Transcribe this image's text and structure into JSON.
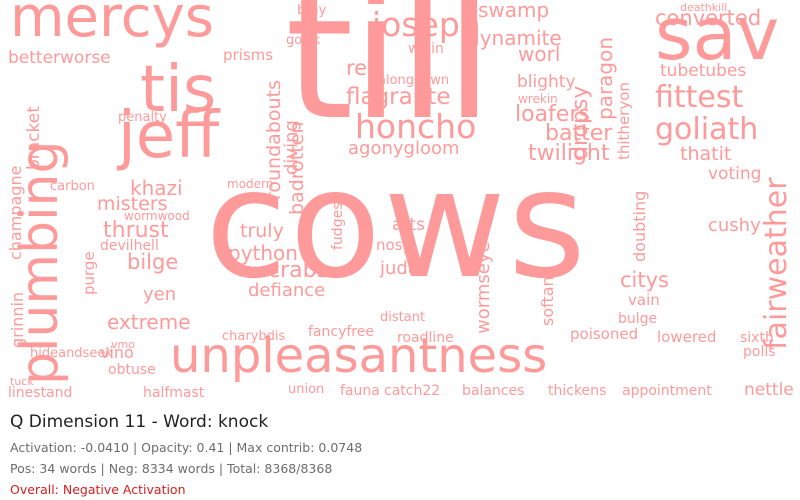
{
  "colors": {
    "word": "#ff9a9a",
    "title": "#222222",
    "meta": "#6d6d6d",
    "overall": "#d42020"
  },
  "title": "Q Dimension 11 - Word: knock",
  "stats": {
    "line1": "Activation: -0.0410 | Opacity: 0.41 | Max contrib: 0.0748",
    "line2": "Pos: 34 words | Neg: 8334 words | Total: 8368/8368",
    "overall": "Overall: Negative Activation"
  },
  "cloud": {
    "words": [
      "cows",
      "till",
      "unpleasantness",
      "sav",
      "tis",
      "jeff",
      "plumbing",
      "mercys",
      "honcho",
      "joseph",
      "goliath",
      "fittest",
      "fairweather",
      "crabs",
      "python",
      "flagrante",
      "agonygloom",
      "twilight",
      "loafers",
      "batter",
      "converted",
      "tubetubes",
      "thatit",
      "voting",
      "cushy",
      "citys",
      "judas",
      "arts",
      "truly",
      "thrust",
      "bilge",
      "extreme",
      "defiance",
      "yen",
      "khazi",
      "misters",
      "vino",
      "obtuse",
      "union",
      "fauna",
      "catch22",
      "roadline",
      "balances",
      "thickens",
      "appointment",
      "nettle",
      "lowered",
      "poisoned",
      "sixth",
      "polls",
      "betterworse",
      "champagne",
      "grinnin",
      "bracket",
      "wormseye",
      "dropsy",
      "paragon",
      "blighty",
      "dynamite",
      "swamp",
      "worl",
      "rec",
      "wrekin",
      "roundabouts",
      "badrotten",
      "diving",
      "fancyfree",
      "distant",
      "nosy",
      "vain",
      "bulge",
      "devilhell",
      "purge",
      "penalty",
      "carbon",
      "modern",
      "wormwood",
      "halfmast",
      "linestand",
      "prisms",
      "fudges",
      "alongdown",
      "gowk",
      "bray",
      "deathkill",
      "charybdis",
      "thitheryon",
      "softan",
      "doubting",
      "willin",
      "hideandseek",
      "tuck",
      "vmo"
    ]
  }
}
